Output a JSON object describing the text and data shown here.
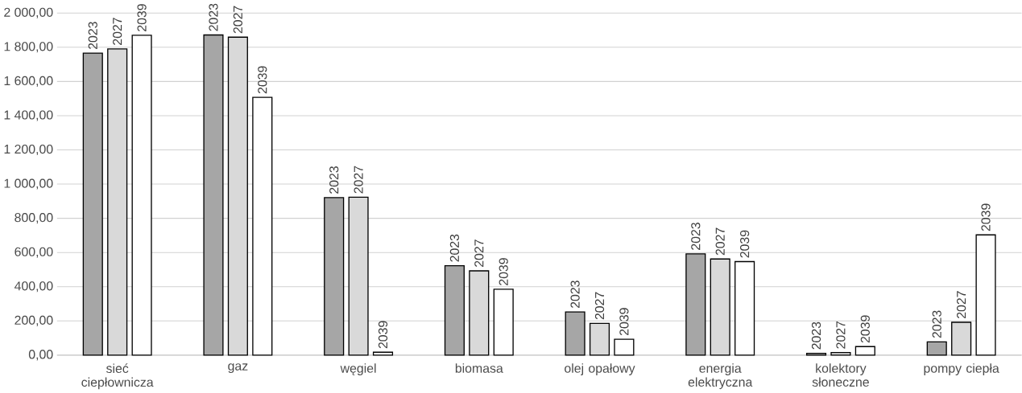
{
  "chart_data": {
    "type": "bar",
    "categories": [
      "sieć ciepłownicza",
      "gaz",
      "węgiel",
      "biomasa",
      "olej opałowy",
      "energia elektryczna",
      "kolektory słoneczne",
      "pompy ciepła"
    ],
    "series": [
      {
        "name": "2023",
        "color": "#a6a6a6",
        "values": [
          1766,
          1872,
          921,
          523,
          253,
          592,
          11,
          78
        ]
      },
      {
        "name": "2027",
        "color": "#d9d9d9",
        "values": [
          1790,
          1859,
          923,
          493,
          186,
          562,
          15,
          192
        ]
      },
      {
        "name": "2039",
        "color": "#ffffff",
        "values": [
          1870,
          1507,
          17,
          385,
          93,
          547,
          50,
          703
        ]
      }
    ],
    "ylim": [
      0,
      2000
    ],
    "yticks": [
      {
        "value": 0,
        "label": "0,00"
      },
      {
        "value": 200,
        "label": "200,00"
      },
      {
        "value": 400,
        "label": "400,00"
      },
      {
        "value": 600,
        "label": "600,00"
      },
      {
        "value": 800,
        "label": "800,00"
      },
      {
        "value": 1000,
        "label": "1 000,00"
      },
      {
        "value": 1200,
        "label": "1 200,00"
      },
      {
        "value": 1400,
        "label": "1 400,00"
      },
      {
        "value": 1600,
        "label": "1 600,00"
      },
      {
        "value": 1800,
        "label": "1 800,00"
      },
      {
        "value": 2000,
        "label": "2 000,00"
      }
    ],
    "grid": "y"
  }
}
